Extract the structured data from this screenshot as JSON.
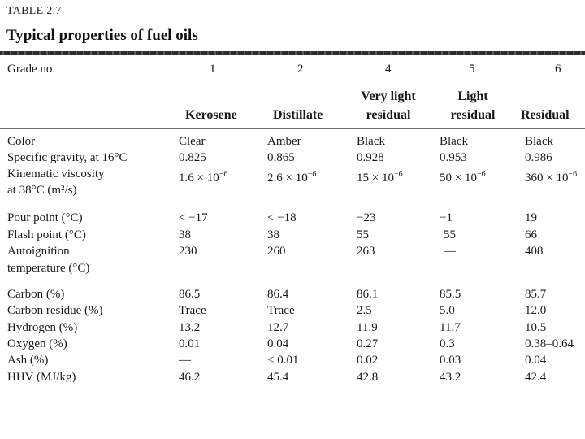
{
  "table_label": "TABLE 2.7",
  "table_title": "Typical properties of fuel oils",
  "grade_header": "Grade no.",
  "grade_numbers": [
    "1",
    "2",
    "4",
    "5",
    "6"
  ],
  "type_names": {
    "g1": "Kerosene",
    "g2": "Distillate",
    "g4_line1": "Very light",
    "g4_line2": "residual",
    "g5_line1": "Light",
    "g5_line2": "residual",
    "g6": "Residual"
  },
  "rows": {
    "color": {
      "label": "Color",
      "values": [
        "Clear",
        "Amber",
        "Black",
        "Black",
        "Black"
      ]
    },
    "specific_gravity": {
      "label": "Specific gravity, at 16°C",
      "values": [
        "0.825",
        "0.865",
        "0.928",
        "0.953",
        "0.986"
      ]
    },
    "viscosity": {
      "label_line1": "Kinematic viscosity",
      "label_line2": "at 38°C (m²/s)",
      "mantissas": [
        "1.6 × 10",
        "2.6 × 10",
        "15 × 10",
        "50 × 10",
        "360 × 10"
      ],
      "exponent": "−6"
    },
    "pour_point": {
      "label": "Pour point (°C)",
      "values": [
        "< −17",
        "< −18",
        "−23",
        "−1",
        "19"
      ]
    },
    "flash_point": {
      "label": "Flash point (°C)",
      "values": [
        "38",
        "38",
        "55",
        "55",
        "66"
      ]
    },
    "autoignition": {
      "label_line1": "Autoignition",
      "label_line2": "temperature (°C)",
      "values": [
        "230",
        "260",
        "263",
        "—",
        "408"
      ]
    },
    "carbon": {
      "label": "Carbon (%)",
      "values": [
        "86.5",
        "86.4",
        "86.1",
        "85.5",
        "85.7"
      ]
    },
    "carbon_residue": {
      "label": "Carbon residue (%)",
      "values": [
        "Trace",
        "Trace",
        "2.5",
        "5.0",
        "12.0"
      ]
    },
    "hydrogen": {
      "label": "Hydrogen (%)",
      "values": [
        "13.2",
        "12.7",
        "11.9",
        "11.7",
        "10.5"
      ]
    },
    "oxygen": {
      "label": "Oxygen (%)",
      "values": [
        "0.01",
        "0.04",
        "0.27",
        "0.3",
        "0.38–0.64"
      ]
    },
    "ash": {
      "label": "Ash (%)",
      "values": [
        "—",
        "< 0.01",
        "0.02",
        "0.03",
        "0.04"
      ]
    },
    "hhv": {
      "label": "HHV (MJ/kg)",
      "values": [
        "46.2",
        "45.4",
        "42.8",
        "43.2",
        "42.4"
      ]
    }
  }
}
